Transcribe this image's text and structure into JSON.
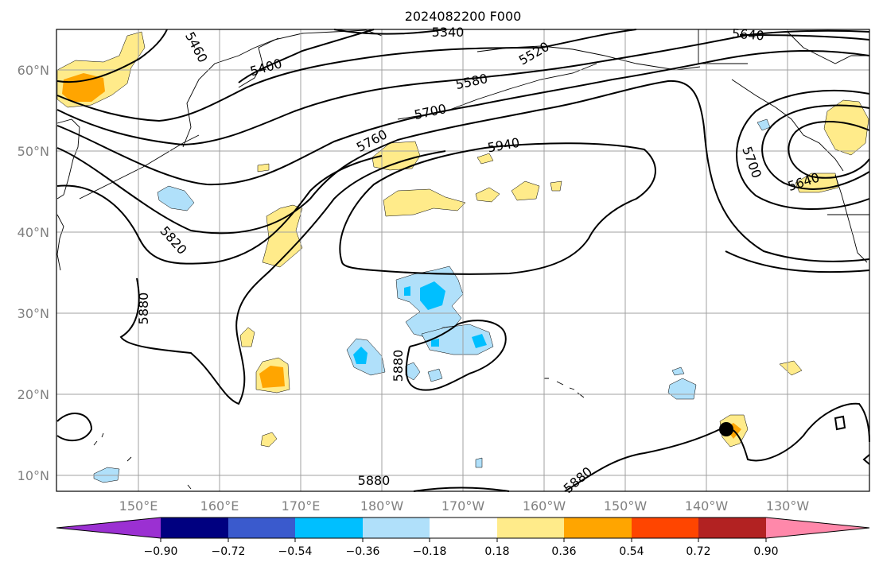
{
  "title": "2024082200 F000",
  "colors": {
    "frame": "#000000",
    "grid": "#a0a0a0",
    "tick_label": "#808080",
    "coast": "#000000",
    "contour": "#000000"
  },
  "lat_labels": [
    "60°N",
    "50°N",
    "40°N",
    "30°N",
    "20°N",
    "10°N"
  ],
  "lon_labels": [
    "150°E",
    "160°E",
    "170°E",
    "180°W",
    "170°W",
    "160°W",
    "150°W",
    "140°W",
    "130°W"
  ],
  "contour_labels": [
    "5460",
    "5400",
    "5340",
    "5520",
    "5580",
    "5640",
    "5700",
    "5760",
    "5940",
    "5820",
    "5880",
    "5880",
    "5880",
    "5700",
    "5640",
    "5880"
  ],
  "colorbar": {
    "bins": [
      {
        "color": "#9b30d2"
      },
      {
        "color": "#000080"
      },
      {
        "color": "#3a5acd"
      },
      {
        "color": "#00bfff"
      },
      {
        "color": "#b0e0fa"
      },
      {
        "color": "#ffffff"
      },
      {
        "color": "#ffeb8a"
      },
      {
        "color": "#ffa500"
      },
      {
        "color": "#ff4500"
      },
      {
        "color": "#b22222"
      },
      {
        "color": "#ff88aa"
      }
    ],
    "tick_labels": [
      "−0.90",
      "−0.72",
      "−0.54",
      "−0.36",
      "−0.18",
      "0.18",
      "0.36",
      "0.54",
      "0.72",
      "0.90"
    ]
  },
  "storm_marker": "black-dot"
}
